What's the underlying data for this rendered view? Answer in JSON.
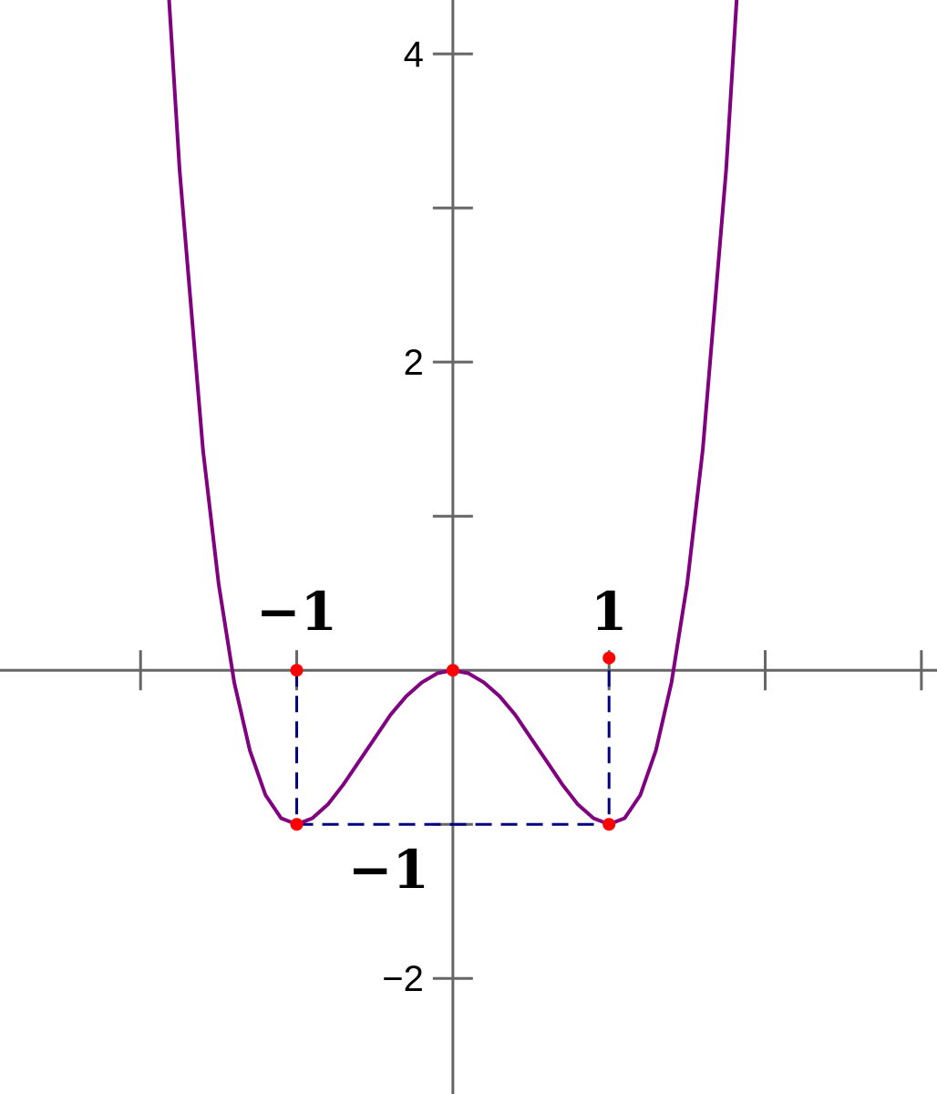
{
  "chart_data": {
    "type": "line",
    "title": "",
    "xlabel": "",
    "ylabel": "",
    "xlim": [
      -2.9,
      3.1
    ],
    "ylim": [
      -2.75,
      4.35
    ],
    "x_ticks": [
      -2,
      -1,
      1,
      2,
      3
    ],
    "y_ticks": [
      -2,
      -1,
      1,
      2,
      3,
      4
    ],
    "y_tick_labels": [
      {
        "value": 4,
        "text": "4"
      },
      {
        "value": 2,
        "text": "2"
      },
      {
        "value": -2,
        "text": "−2"
      }
    ],
    "annotation_labels": [
      {
        "text": "−1",
        "x": -1,
        "axis": "x"
      },
      {
        "text": "1",
        "x": 1,
        "axis": "x"
      },
      {
        "text": "−1",
        "y": -1,
        "axis": "y"
      }
    ],
    "series": [
      {
        "function": "x^4 - 2x^2",
        "x": [
          -1.86,
          -1.75,
          -1.6,
          -1.5,
          -1.4,
          -1.3,
          -1.2,
          -1.1,
          -1.0,
          -0.9,
          -0.8,
          -0.7,
          -0.6,
          -0.5,
          -0.4,
          -0.3,
          -0.2,
          -0.1,
          0.0,
          0.1,
          0.2,
          0.3,
          0.4,
          0.5,
          0.6,
          0.7,
          0.8,
          0.9,
          1.0,
          1.1,
          1.2,
          1.3,
          1.4,
          1.5,
          1.6,
          1.75,
          1.86
        ],
        "y": [
          5.05,
          3.25,
          1.43,
          0.56,
          -0.08,
          -0.52,
          -0.81,
          -0.96,
          -1.0,
          -0.96,
          -0.87,
          -0.74,
          -0.59,
          -0.44,
          -0.29,
          -0.17,
          -0.08,
          -0.02,
          0.0,
          -0.02,
          -0.08,
          -0.17,
          -0.29,
          -0.44,
          -0.59,
          -0.74,
          -0.87,
          -0.96,
          -1.0,
          -0.96,
          -0.81,
          -0.52,
          -0.08,
          0.56,
          1.43,
          3.25,
          5.05
        ]
      }
    ],
    "points": [
      {
        "x": -1,
        "y": 0
      },
      {
        "x": 0,
        "y": 0
      },
      {
        "x": 1,
        "y": 0.08
      },
      {
        "x": -1,
        "y": -1
      },
      {
        "x": 1,
        "y": -1
      }
    ],
    "guides": [
      {
        "from": [
          -1,
          0
        ],
        "to": [
          -1,
          -1
        ]
      },
      {
        "from": [
          1,
          0
        ],
        "to": [
          1,
          -1
        ]
      },
      {
        "from": [
          -1,
          -1
        ],
        "to": [
          1,
          -1
        ]
      }
    ],
    "colors": {
      "curve": "#800080",
      "axis": "#666666",
      "points": "#ff0000",
      "guides": "#000080"
    }
  }
}
